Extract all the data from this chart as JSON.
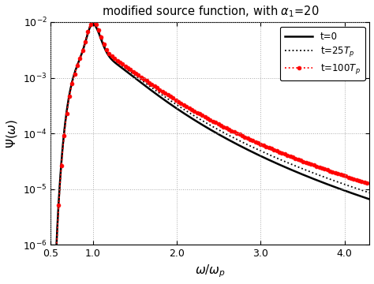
{
  "title": "modified source function, with $\\alpha_1$=20",
  "xlabel": "$\\omega/\\omega_p$",
  "ylabel": "$\\Psi(\\omega)$",
  "xlim": [
    0.5,
    4.3
  ],
  "xp": 1.0,
  "legend": [
    "t=0",
    "t=25$T_p$",
    "t=100$T_p$"
  ],
  "colors_line": [
    "black",
    "black",
    "red"
  ],
  "linestyles": [
    "-",
    ":",
    ":"
  ],
  "background": "#ffffff",
  "grid_color": "#aaaaaa",
  "peak_vals": [
    0.0092,
    0.0098,
    0.01
  ],
  "n_tails": [
    5.0,
    4.85,
    4.6
  ],
  "gammas": [
    3.3,
    3.35,
    3.4
  ],
  "marker_every": 25
}
